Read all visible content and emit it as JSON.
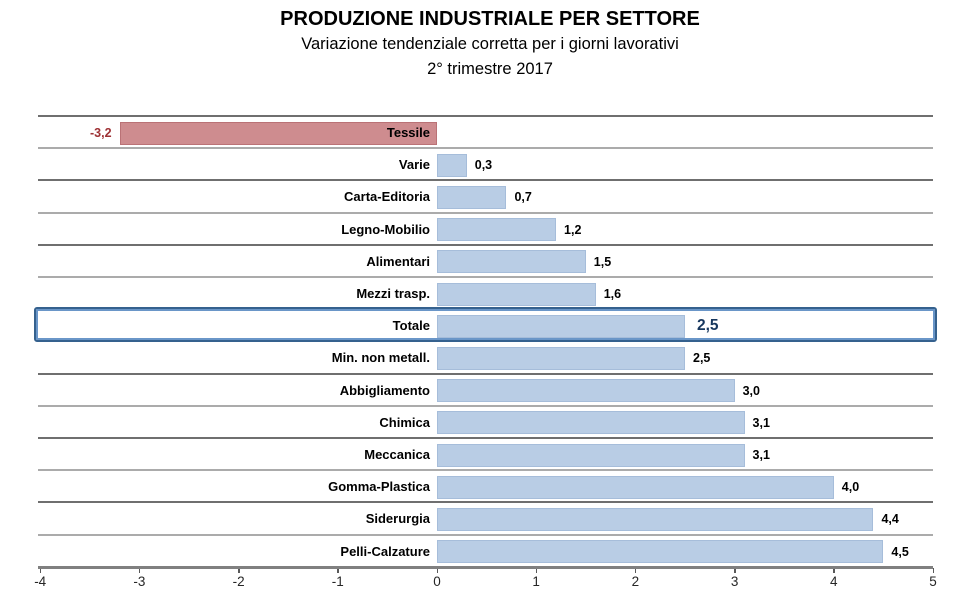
{
  "header": {
    "title": "PRODUZIONE INDUSTRIALE PER SETTORE",
    "subtitle_line1": "Variazione tendenziale corretta per i giorni lavorativi",
    "subtitle_line2": "2° trimestre 2017"
  },
  "chart_data": {
    "type": "bar",
    "orientation": "horizontal",
    "title": "PRODUZIONE INDUSTRIALE PER SETTORE",
    "subtitle": "Variazione tendenziale corretta per i giorni lavorativi — 2° trimestre 2017",
    "categories": [
      "Tessile",
      "Varie",
      "Carta-Editoria",
      "Legno-Mobilio",
      "Alimentari",
      "Mezzi trasp.",
      "Totale",
      "Min. non metall.",
      "Abbigliamento",
      "Chimica",
      "Meccanica",
      "Gomma-Plastica",
      "Siderurgia",
      "Pelli-Calzature"
    ],
    "values": [
      -3.2,
      0.3,
      0.7,
      1.2,
      1.5,
      1.6,
      2.5,
      2.5,
      3.0,
      3.1,
      3.1,
      4.0,
      4.4,
      4.5
    ],
    "value_labels": [
      "-3,2",
      "0,3",
      "0,7",
      "1,2",
      "1,5",
      "1,6",
      "2,5",
      "2,5",
      "3,0",
      "3,1",
      "3,1",
      "4,0",
      "4,4",
      "4,5"
    ],
    "highlight_category": "Totale",
    "xlim": [
      -4,
      5
    ],
    "x_ticks": [
      "-4",
      "-3",
      "-2",
      "-1",
      "0",
      "1",
      "2",
      "3",
      "4",
      "5"
    ],
    "grid": "horizontal-row-separators",
    "legend": "none",
    "colors": {
      "positive_bar": "#B9CDE5",
      "positive_bar_border": "#A6BDDA",
      "negative_bar": "#CE8C8F",
      "negative_bar_border": "#BA7276",
      "negative_value_text": "#9E3134",
      "highlight_box_border": "#35618E",
      "highlight_box_inner": "#6A96C8",
      "highlight_value_text": "#17375E",
      "axis_line": "#808080",
      "separator_dark": "#6F6F6F",
      "separator_light": "#ABABAB"
    }
  }
}
